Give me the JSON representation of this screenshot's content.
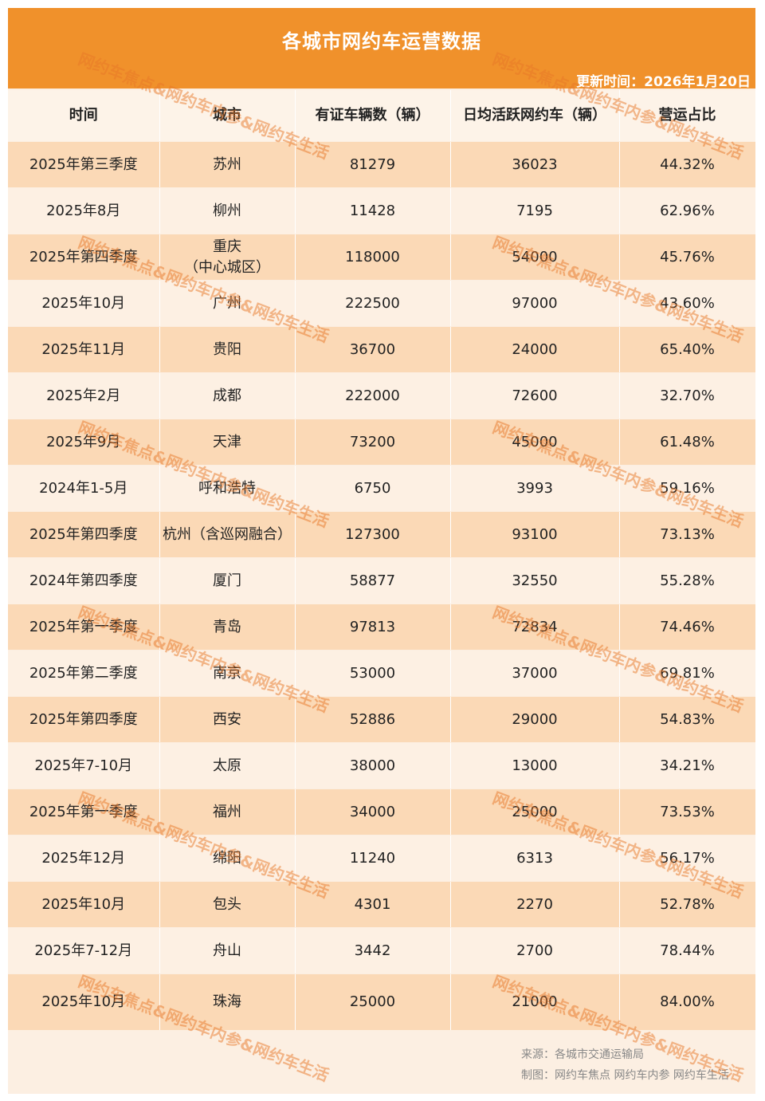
{
  "title": "各城市网约车运营数据",
  "updated": "更新时间：2026年1月20日",
  "columns": [
    "时间",
    "城市",
    "有证车辆数（辆）",
    "日均活跃网约车（辆）",
    "营运占比"
  ],
  "rows": [
    [
      "2025年第三季度",
      "苏州",
      "81279",
      "36023",
      "44.32%"
    ],
    [
      "2025年8月",
      "柳州",
      "11428",
      "7195",
      "62.96%"
    ],
    [
      "2025年第四季度",
      "重庆\n（中心城区）",
      "118000",
      "54000",
      "45.76%"
    ],
    [
      "2025年10月",
      "广州",
      "222500",
      "97000",
      "43.60%"
    ],
    [
      "2025年11月",
      "贵阳",
      "36700",
      "24000",
      "65.40%"
    ],
    [
      "2025年2月",
      "成都",
      "222000",
      "72600",
      "32.70%"
    ],
    [
      "2025年9月",
      "天津",
      "73200",
      "45000",
      "61.48%"
    ],
    [
      "2024年1-5月",
      "呼和浩特",
      "6750",
      "3993",
      "59.16%"
    ],
    [
      "2025年第四季度",
      "杭州（含巡网融合）",
      "127300",
      "93100",
      "73.13%"
    ],
    [
      "2024年第四季度",
      "厦门",
      "58877",
      "32550",
      "55.28%"
    ],
    [
      "2025年第一季度",
      "青岛",
      "97813",
      "72834",
      "74.46%"
    ],
    [
      "2025年第二季度",
      "南京",
      "53000",
      "37000",
      "69.81%"
    ],
    [
      "2025年第四季度",
      "西安",
      "52886",
      "29000",
      "54.83%"
    ],
    [
      "2025年7-10月",
      "太原",
      "38000",
      "13000",
      "34.21%"
    ],
    [
      "2025年第一季度",
      "福州",
      "34000",
      "25000",
      "73.53%"
    ],
    [
      "2025年12月",
      "绵阳",
      "11240",
      "6313",
      "56.17%"
    ],
    [
      "2025年10月",
      "包头",
      "4301",
      "2270",
      "52.78%"
    ],
    [
      "2025年7-12月",
      "舟山",
      "3442",
      "2700",
      "78.44%"
    ],
    [
      "2025年10月",
      "珠海",
      "25000",
      "21000",
      "84.00%"
    ]
  ],
  "footer": {
    "source": "来源：各城市交通运输局",
    "credit": "制图：网约车焦点 网约车内参 网约车生活"
  },
  "watermark": "网约车焦点&网约车内参&网约车生活",
  "colors": {
    "header_bg": "#f0912b",
    "row_odd": "#fbd9b6",
    "row_even": "#fdf0e3",
    "watermark": "#e87828"
  }
}
